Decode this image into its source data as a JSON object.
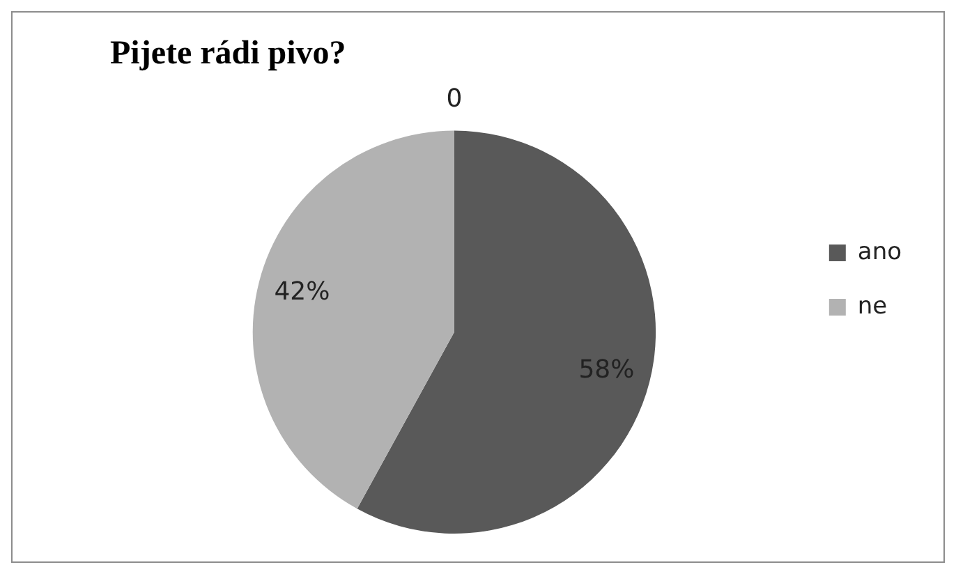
{
  "chart_data": {
    "type": "pie",
    "title": "Pijete rádi pivo?",
    "categories": [
      "ano",
      "ne"
    ],
    "values": [
      58,
      42
    ],
    "colors": [
      "#595959",
      "#b2b2b2"
    ],
    "value_labels": [
      "58%",
      "42%"
    ],
    "annotations": [
      "0"
    ],
    "legend": "right"
  }
}
